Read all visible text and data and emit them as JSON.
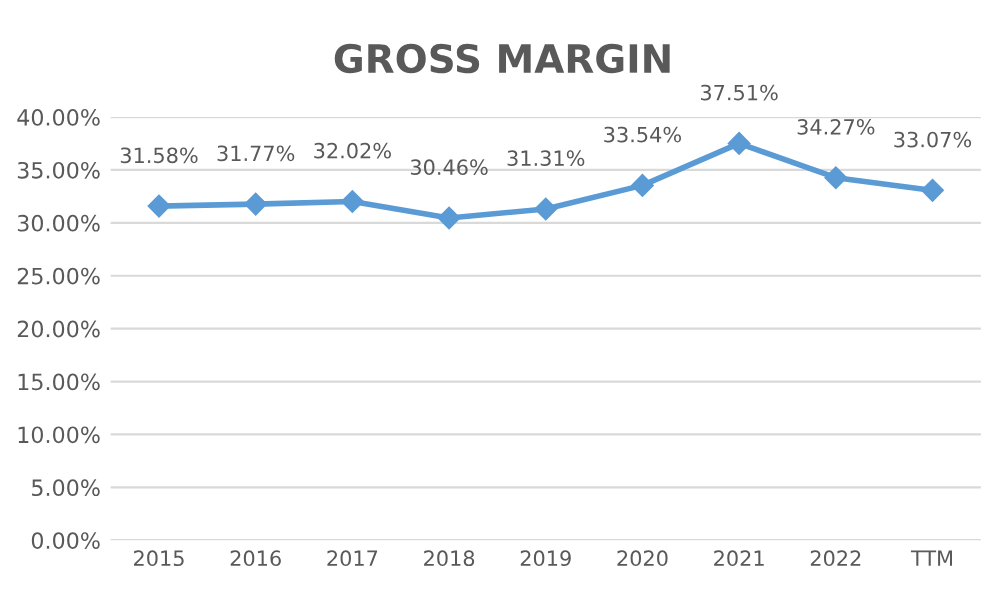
{
  "chart_data": {
    "type": "line",
    "title": "GROSS MARGIN",
    "categories": [
      "2015",
      "2016",
      "2017",
      "2018",
      "2019",
      "2020",
      "2021",
      "2022",
      "TTM"
    ],
    "series": [
      {
        "color": "#5b9bd5",
        "values": [
          31.58,
          31.77,
          32.02,
          30.46,
          31.31,
          33.54,
          37.51,
          34.27,
          33.07
        ],
        "value_labels": [
          "31.58%",
          "31.77%",
          "32.02%",
          "30.46%",
          "31.31%",
          "33.54%",
          "37.51%",
          "34.27%",
          "33.07%"
        ]
      }
    ],
    "ylim": [
      0,
      40
    ],
    "yticks": [
      {
        "value": 0,
        "label": "0.00%"
      },
      {
        "value": 5,
        "label": "5.00%"
      },
      {
        "value": 10,
        "label": "10.00%"
      },
      {
        "value": 15,
        "label": "15.00%"
      },
      {
        "value": 20,
        "label": "20.00%"
      },
      {
        "value": 25,
        "label": "25.00%"
      },
      {
        "value": 30,
        "label": "30.00%"
      },
      {
        "value": 35,
        "label": "35.00%"
      },
      {
        "value": 40,
        "label": "40.00%"
      }
    ],
    "grid": "y",
    "marker": "diamond",
    "line_style": "solid",
    "legend": false
  }
}
